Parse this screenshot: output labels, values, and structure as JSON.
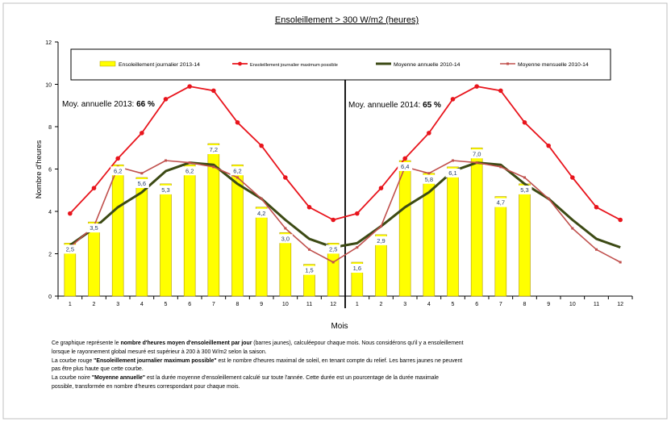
{
  "chart_data": {
    "type": "bar",
    "title": "Ensoleillement  > 300 W/m2 (heures)",
    "xlabel": "Mois",
    "ylabel": "Nombre d'heures",
    "ylim": [
      0,
      12
    ],
    "yticks": [
      "0",
      "2",
      "4",
      "6",
      "8",
      "10",
      "12"
    ],
    "categories": [
      "1",
      "2",
      "3",
      "4",
      "5",
      "6",
      "7",
      "8",
      "9",
      "10",
      "11",
      "12",
      "1",
      "2",
      "3",
      "4",
      "5",
      "6",
      "7",
      "8",
      "9",
      "10",
      "11",
      "12"
    ],
    "legend_position": "top",
    "grid": false,
    "series": [
      {
        "name": "Ensoleillement journalier 2013-14",
        "type": "bar",
        "color": "#ffff00",
        "values": [
          2.5,
          3.5,
          6.2,
          5.6,
          5.3,
          6.2,
          7.2,
          6.2,
          4.2,
          3.0,
          1.5,
          2.5,
          1.6,
          2.9,
          6.4,
          5.8,
          6.1,
          7.0,
          4.7,
          5.3,
          null,
          null,
          null,
          null
        ],
        "labels": [
          "2,5",
          "3,5",
          "6,2",
          "5,6",
          "5,3",
          "6,2",
          "7,2",
          "6,2",
          "4,2",
          "3,0",
          "1,5",
          "2,5",
          "1,6",
          "2,9",
          "6,4",
          "5,8",
          "6,1",
          "7,0",
          "4,7",
          "5,3",
          "",
          "",
          "",
          ""
        ]
      },
      {
        "name": "Ensoleillement journalier maximum possible",
        "type": "line",
        "color": "#e8141c",
        "values": [
          3.9,
          5.1,
          6.5,
          7.7,
          9.3,
          9.9,
          9.7,
          8.2,
          7.1,
          5.6,
          4.2,
          3.6,
          3.9,
          5.1,
          6.5,
          7.7,
          9.3,
          9.9,
          9.7,
          8.2,
          7.1,
          5.6,
          4.2,
          3.6
        ]
      },
      {
        "name": "Moyenne annuelle 2010-14",
        "type": "line",
        "color": "#3c4a14",
        "values": [
          2.4,
          3.2,
          4.2,
          4.9,
          5.9,
          6.3,
          6.2,
          5.3,
          4.6,
          3.6,
          2.7,
          2.3,
          2.5,
          3.3,
          4.2,
          4.9,
          5.9,
          6.3,
          6.2,
          5.3,
          4.6,
          3.6,
          2.7,
          2.3
        ]
      },
      {
        "name": "Moyenne mensuelle 2010-14",
        "type": "line",
        "color": "#c0504d",
        "values": [
          2.3,
          3.3,
          6.1,
          5.8,
          6.4,
          6.3,
          6.1,
          5.6,
          4.6,
          3.2,
          2.2,
          1.6,
          2.3,
          3.3,
          6.1,
          5.8,
          6.4,
          6.3,
          6.1,
          5.6,
          4.6,
          3.2,
          2.2,
          1.6
        ]
      }
    ],
    "annotations": [
      {
        "label": "Moy. annuelle 2013: ",
        "value": "66 %"
      },
      {
        "label": "Moy. annuelle 2014: ",
        "value": "65 %"
      }
    ]
  },
  "notes": [
    [
      "Ce graphique  représente le ",
      "nombre d'heures moyen d'ensoleillement par jour",
      " (barres  jaunes), calculéepour chaque mois. Nous considérons qu'il y a ensoleillement"
    ],
    [
      "lorsque le rayonnement global mesuré est supérieur à 200 à 300 W/m2 selon la saison.",
      "",
      ""
    ],
    [
      "La courbe rouge ",
      "\"Ensoleillement journalier  maximum possible\"",
      " est le  nombre d'heures maximal de soleil, en tenant compte du relief. Les barres jaunes ne peuvent"
    ],
    [
      "pas être plus haute que cette courbe.",
      "",
      ""
    ],
    [
      "La courbe noire ",
      "\"Moyenne annuelle\"",
      "  est la durée moyenne d'ensoleillement  calculé sur toute l'année. Cette durée est un pourcentage de la durée maximale"
    ],
    [
      "possible, transformée en nombre d'heures correspondant pour chaque mois.",
      "",
      ""
    ]
  ]
}
